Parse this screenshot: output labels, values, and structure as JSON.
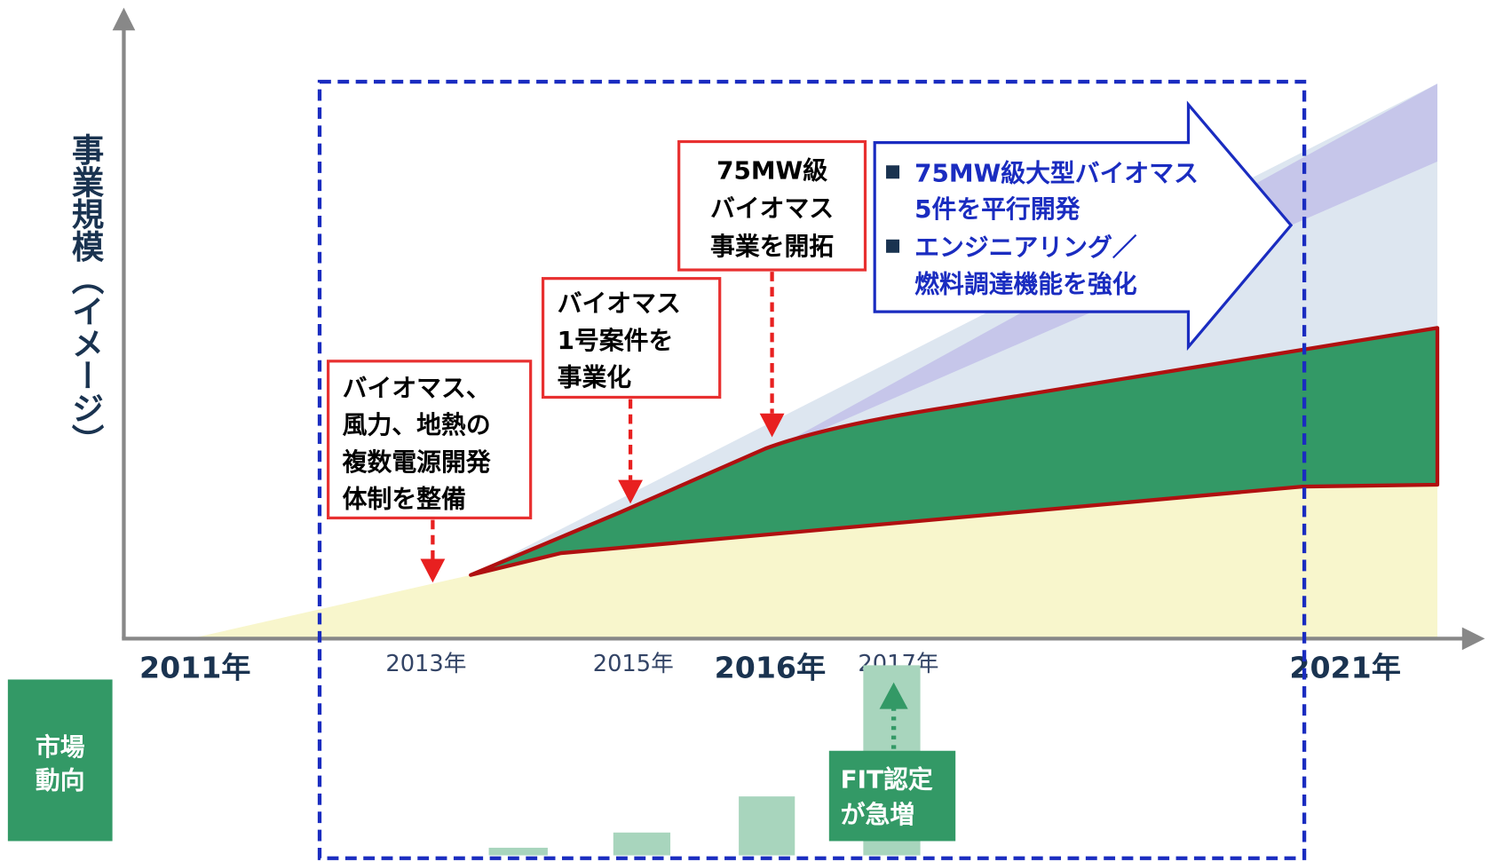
{
  "y_axis_label": "事業規模（イメージ）",
  "x_labels": [
    "2011年",
    "2013年",
    "2015年",
    "2016年",
    "2017年",
    "2021年"
  ],
  "milestones": [
    {
      "lines": [
        "バイオマス、",
        "風力、地熱の",
        "複数電源開発",
        "体制を整備"
      ]
    },
    {
      "lines": [
        "バイオマス",
        "1号案件を",
        "事業化"
      ]
    },
    {
      "lines": [
        "75MW級",
        "バイオマス",
        "事業を開拓"
      ]
    }
  ],
  "future": {
    "bullets": [
      {
        "lines": [
          "75MW級大型バイオマス",
          "5件を平行開発"
        ]
      },
      {
        "lines": [
          "エンジニアリング／",
          "燃料調達機能を強化"
        ]
      }
    ]
  },
  "market": {
    "label": [
      "市場",
      "動向"
    ],
    "note": [
      "FIT認定",
      "が急増"
    ]
  }
}
